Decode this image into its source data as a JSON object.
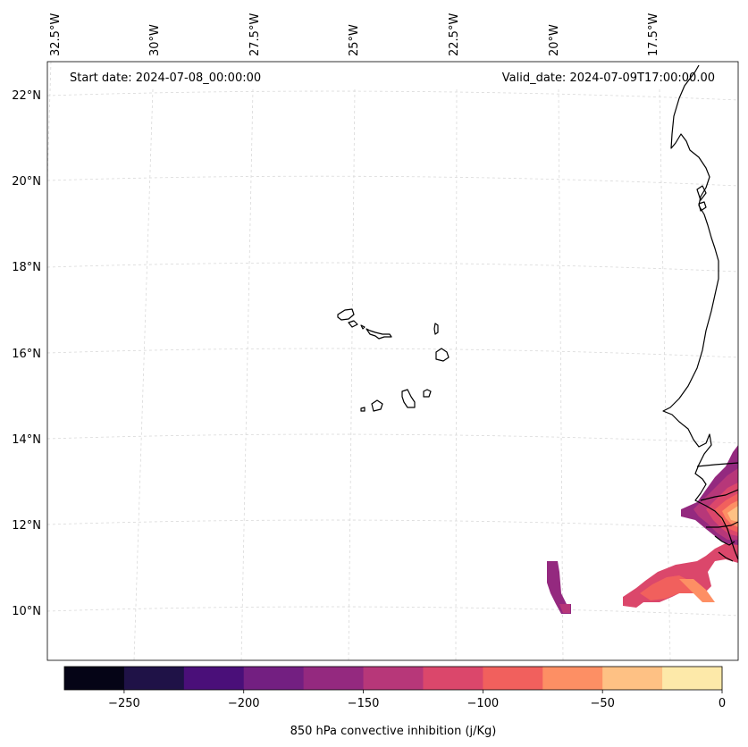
{
  "header": {
    "start_date": "Start date: 2024-07-08_00:00:00",
    "valid_date": "Valid_date: 2024-07-09T17:00:00.00"
  },
  "lon_labels": [
    "32.5°W",
    "30°W",
    "27.5°W",
    "25°W",
    "22.5°W",
    "20°W",
    "17.5°W"
  ],
  "lat_labels": [
    "22°N",
    "20°N",
    "18°N",
    "16°N",
    "14°N",
    "12°N",
    "10°N"
  ],
  "colorbar": {
    "label": "850 hPa convective inhibition (j/Kg)",
    "ticks": [
      "−250",
      "−200",
      "−150",
      "−100",
      "−50",
      "0"
    ],
    "levels": [
      -275,
      -250,
      -225,
      -200,
      -175,
      -150,
      -125,
      -100,
      -75,
      -50,
      -25,
      0
    ],
    "colors": [
      "#050416",
      "#1f1247",
      "#4a0f79",
      "#731f81",
      "#94297f",
      "#b73779",
      "#db476b",
      "#f1605d",
      "#fd8f64",
      "#fec184",
      "#fde9a9"
    ]
  },
  "colors": {
    "coastline": "#000000",
    "gridline": "#d9d9d9"
  }
}
